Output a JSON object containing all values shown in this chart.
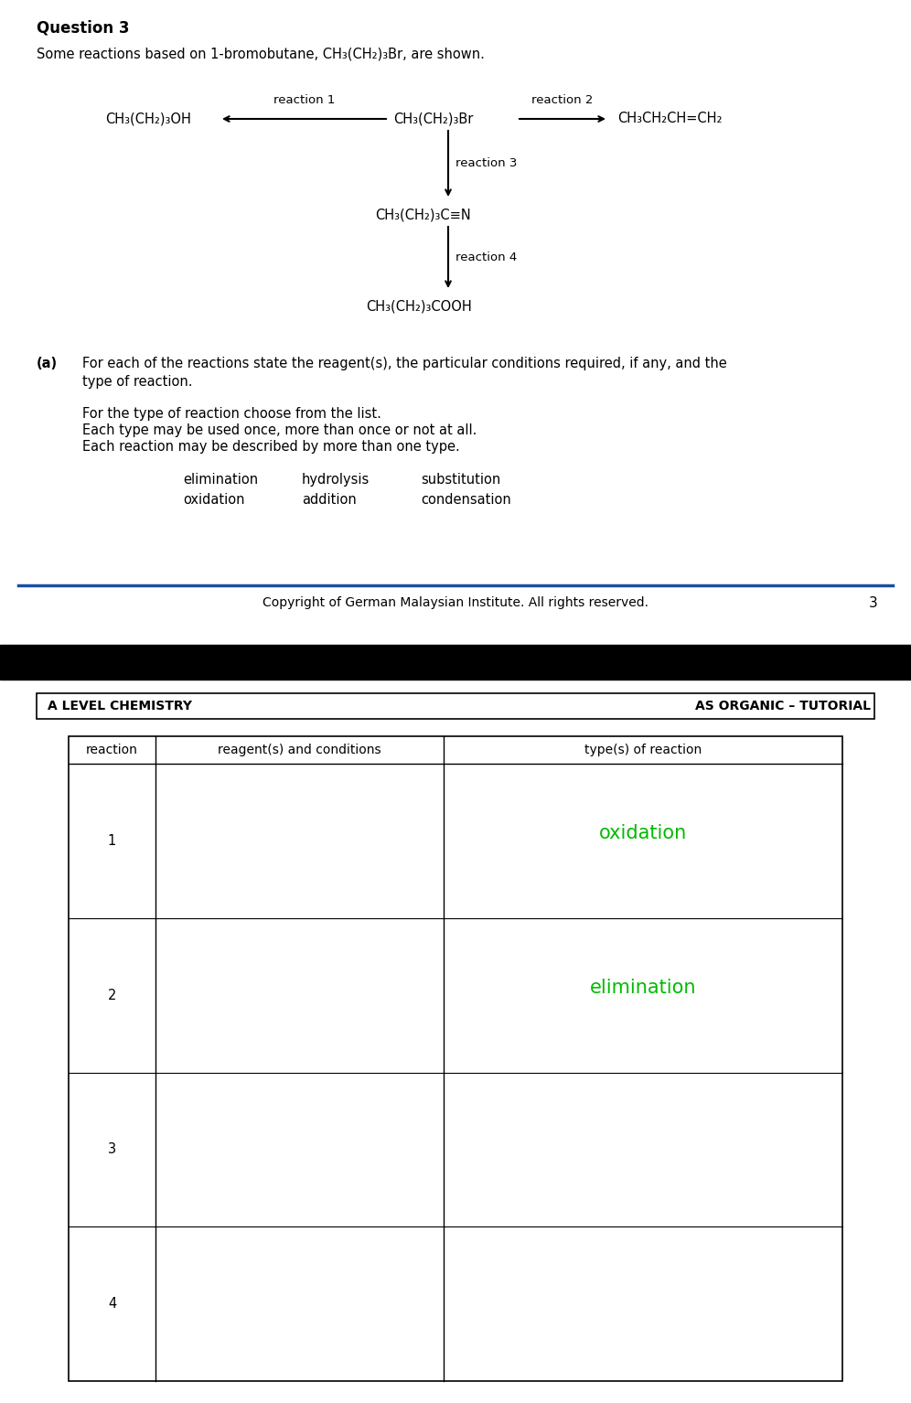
{
  "page_bg": "#ffffff",
  "question_title": "Question 3",
  "intro_text": "Some reactions based on 1-bromobutane, CH₃(CH₂)₃Br, are shown.",
  "compound_center": "CH₃(CH₂)₃Br",
  "compound_left": "CH₃(CH₂)₃OH",
  "compound_right": "CH₃CH₂CH=CH₂",
  "compound_down1": "CH₃(CH₂)₃C≡N",
  "compound_down2": "CH₃(CH₂)₃COOH",
  "reaction1_label": "reaction 1",
  "reaction2_label": "reaction 2",
  "reaction3_label": "reaction 3",
  "reaction4_label": "reaction 4",
  "part_a_bold": "(a)",
  "part_a_line1": "For each of the reactions state the reagent(s), the particular conditions required, if any, and the",
  "part_a_line2": "type of reaction.",
  "for_type_lines": [
    "For the type of reaction choose from the list.",
    "Each type may be used once, more than once or not at all.",
    "Each reaction may be described by more than one type."
  ],
  "reaction_types_row1": [
    "elimination",
    "hydrolysis",
    "substitution"
  ],
  "reaction_types_row2": [
    "oxidation",
    "addition",
    "condensation"
  ],
  "copyright_text": "Copyright of German Malaysian Institute. All rights reserved.",
  "page_number": "3",
  "header_left": "A LEVEL CHEMISTRY",
  "header_right": "AS ORGANIC – TUTORIAL",
  "table_headers": [
    "reaction",
    "reagent(s) and conditions",
    "type(s) of reaction"
  ],
  "table_rows": [
    "1",
    "2",
    "3",
    "4"
  ],
  "handwritten_row1": "oxidation",
  "handwritten_row2": "elimination",
  "handwritten_color": "#00bb00"
}
